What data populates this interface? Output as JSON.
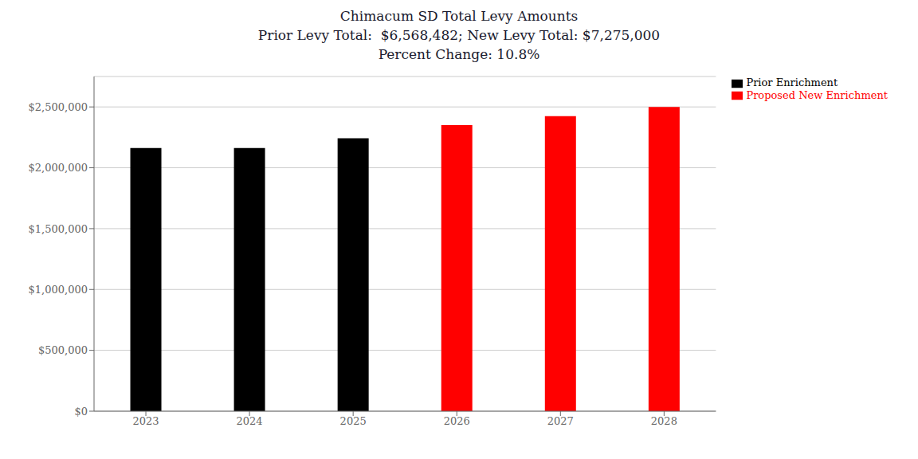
{
  "chart_data": {
    "type": "bar",
    "title": "Chimacum SD Total Levy Amounts\nPrior Levy Total:  $6,568,482; New Levy Total: $7,275,000\nPercent Change: 10.8%",
    "categories": [
      "2023",
      "2024",
      "2025",
      "2026",
      "2027",
      "2028"
    ],
    "series": [
      {
        "name": "Prior Enrichment",
        "color": "#000000",
        "values": [
          2162741,
          2162741,
          2243000,
          null,
          null,
          null
        ]
      },
      {
        "name": "Proposed New Enrichment",
        "color": "#ff0000",
        "values": [
          null,
          null,
          null,
          2350000,
          2425000,
          2500000
        ]
      }
    ],
    "stacked": true,
    "ylim": [
      0,
      2750000
    ],
    "yticks": [
      {
        "value": 0,
        "label": "$0"
      },
      {
        "value": 500000,
        "label": "$500,000"
      },
      {
        "value": 1000000,
        "label": "$1,000,000"
      },
      {
        "value": 1500000,
        "label": "$1,500,000"
      },
      {
        "value": 2000000,
        "label": "$2,000,000"
      },
      {
        "value": 2500000,
        "label": "$2,500,000"
      }
    ],
    "grid": true,
    "legend": "upper right"
  }
}
